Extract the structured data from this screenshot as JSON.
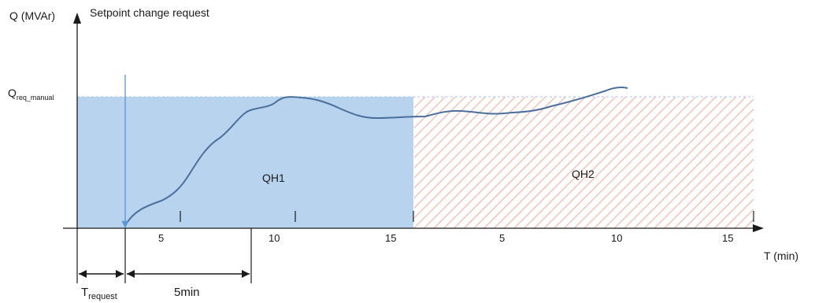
{
  "y_axis_label": "Q (MVAr)",
  "setpoint_label": "Setpoint change request",
  "q_req_label": "Q",
  "q_req_sub": "req_manual",
  "x_axis_label": "T (min)",
  "region_1_label": "QH1",
  "region_2_label": "QH2",
  "segment_1_ticks": [
    "5",
    "10",
    "15"
  ],
  "segment_2_ticks": [
    "5",
    "10",
    "15"
  ],
  "t_request_label": "T",
  "t_request_sub": "request",
  "five_min_label": "5min",
  "colors": {
    "qh1_fill": "#b8d3ee",
    "qh2_hatch": "#f2c4b8",
    "curve": "#4a6f9c",
    "arrow": "#5b95d6",
    "axis": "#1a1a1a"
  }
}
